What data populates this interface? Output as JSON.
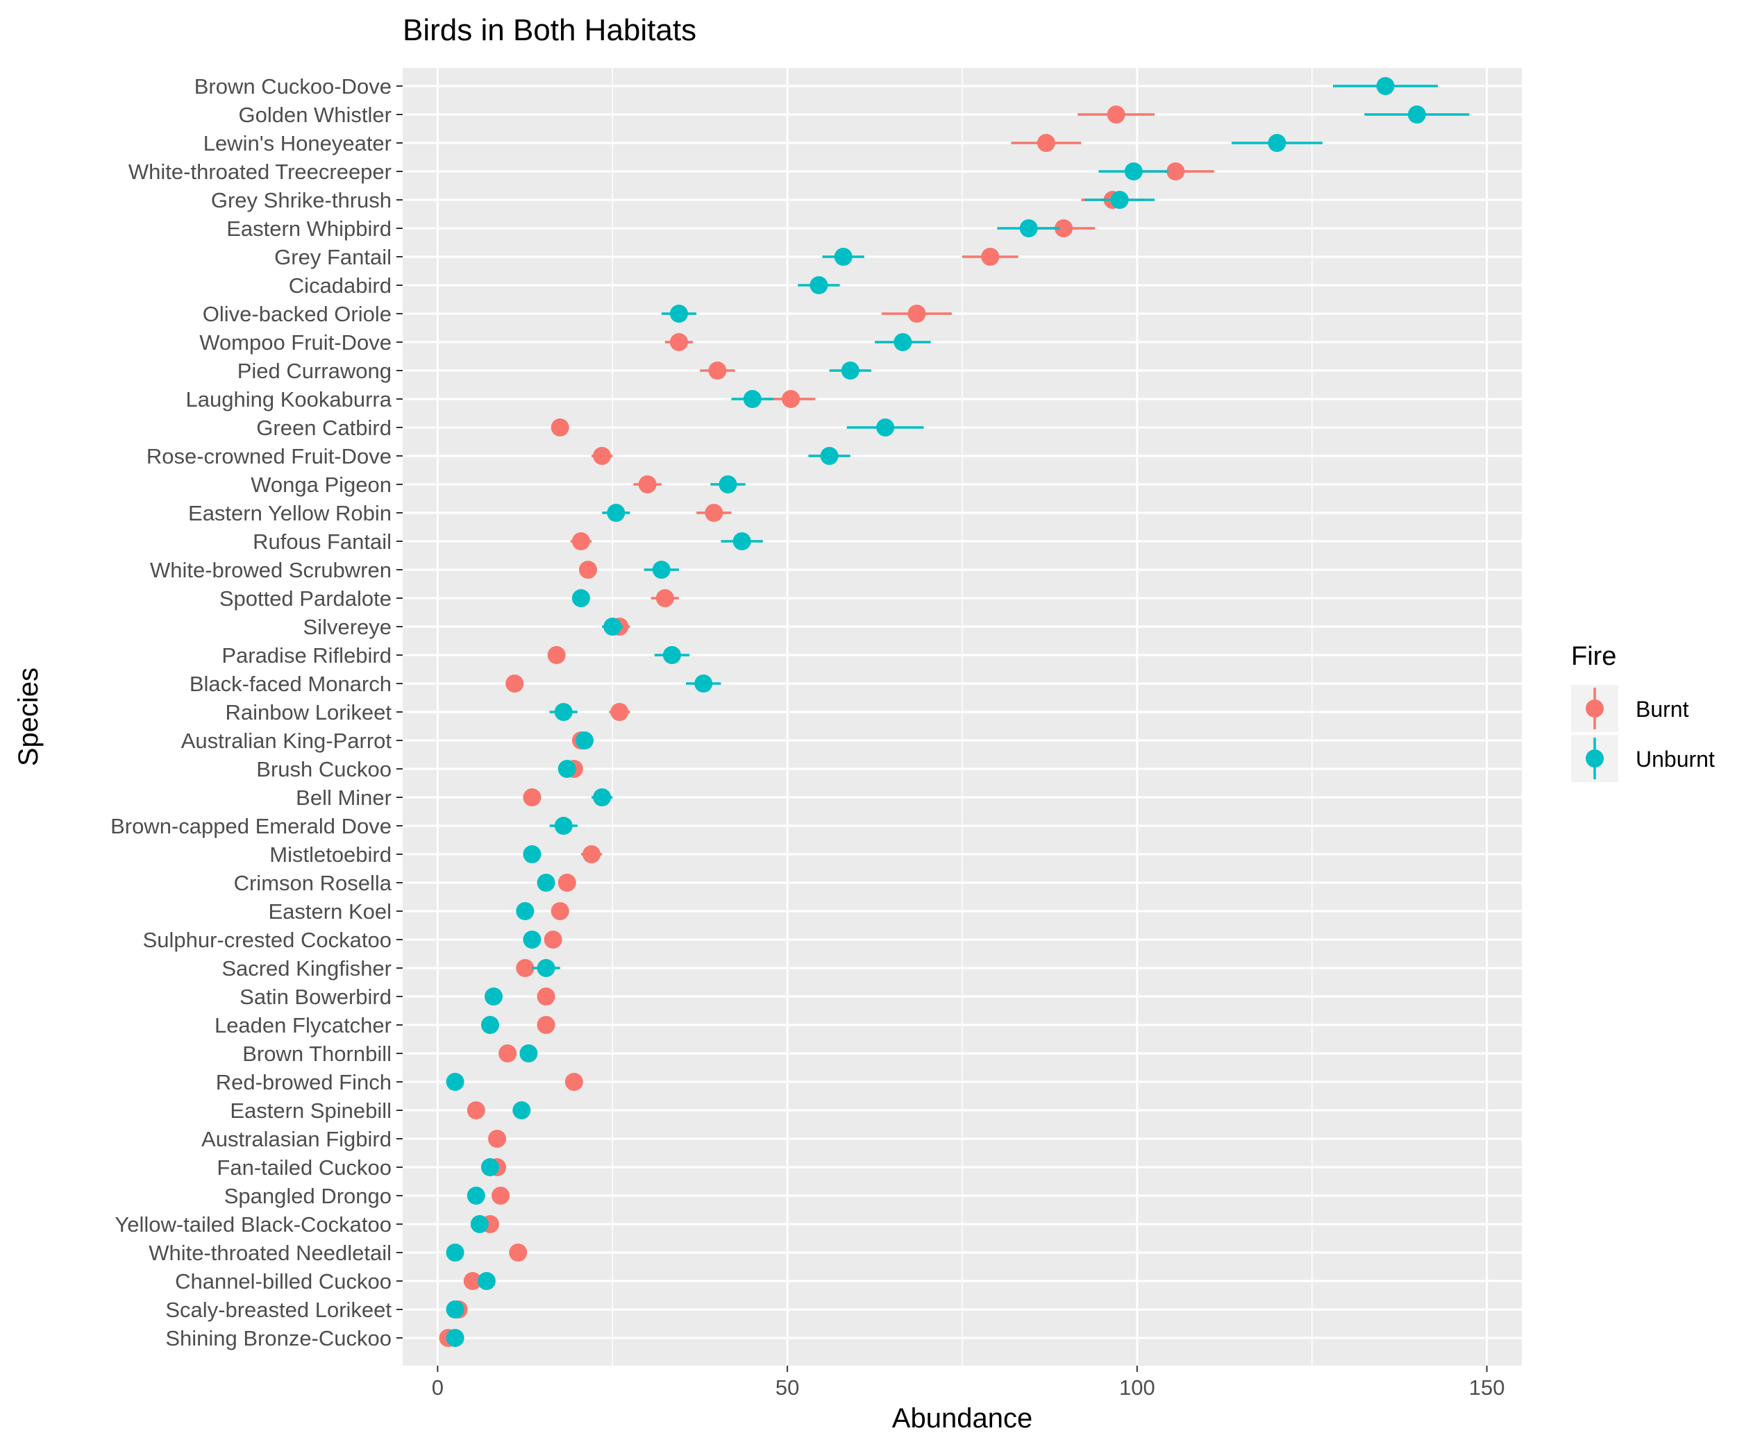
{
  "chart_data": {
    "type": "scatter",
    "title": "Birds in Both Habitats",
    "xlabel": "Abundance",
    "ylabel": "Species",
    "xlim": [
      -5,
      155
    ],
    "xticks": [
      0,
      50,
      100,
      150
    ],
    "grid": true,
    "legend": {
      "title": "Fire",
      "position": "right",
      "entries": [
        {
          "name": "Burnt",
          "color": "#F8766D"
        },
        {
          "name": "Unburnt",
          "color": "#00BFC4"
        }
      ]
    },
    "categories": [
      "Brown Cuckoo-Dove",
      "Golden Whistler",
      "Lewin's Honeyeater",
      "White-throated Treecreeper",
      "Grey Shrike-thrush",
      "Eastern Whipbird",
      "Grey Fantail",
      "Cicadabird",
      "Olive-backed Oriole",
      "Wompoo Fruit-Dove",
      "Pied Currawong",
      "Laughing Kookaburra",
      "Green Catbird",
      "Rose-crowned Fruit-Dove",
      "Wonga Pigeon",
      "Eastern Yellow Robin",
      "Rufous Fantail",
      "White-browed Scrubwren",
      "Spotted Pardalote",
      "Silvereye",
      "Paradise Riflebird",
      "Black-faced Monarch",
      "Rainbow Lorikeet",
      "Australian King-Parrot",
      "Brush Cuckoo",
      "Bell Miner",
      "Brown-capped Emerald Dove",
      "Mistletoebird",
      "Crimson Rosella",
      "Eastern Koel",
      "Sulphur-crested Cockatoo",
      "Sacred Kingfisher",
      "Satin Bowerbird",
      "Leaden Flycatcher",
      "Brown Thornbill",
      "Red-browed Finch",
      "Eastern Spinebill",
      "Australasian Figbird",
      "Fan-tailed Cuckoo",
      "Spangled Drongo",
      "Yellow-tailed Black-Cockatoo",
      "White-throated Needletail",
      "Channel-billed Cuckoo",
      "Scaly-breasted Lorikeet",
      "Shining Bronze-Cuckoo"
    ],
    "series": [
      {
        "name": "Burnt",
        "color": "#F8766D",
        "values": [
          null,
          97,
          87,
          105.5,
          96.5,
          89.5,
          79,
          null,
          68.5,
          34.5,
          40,
          50.5,
          17.5,
          23.5,
          30,
          39.5,
          20.5,
          21.5,
          32.5,
          26,
          17,
          11,
          26,
          20.5,
          19.5,
          13.5,
          null,
          22,
          18.5,
          17.5,
          16.5,
          12.5,
          15.5,
          15.5,
          10,
          19.5,
          5.5,
          8.5,
          8.5,
          9,
          7.5,
          11.5,
          5,
          3,
          1.5
        ],
        "err": [
          null,
          5.5,
          5,
          5.5,
          4.5,
          4.5,
          4,
          null,
          5,
          2,
          2.5,
          3.5,
          1,
          1.5,
          2,
          2.5,
          1.5,
          1,
          2,
          1.5,
          1,
          0.8,
          1.5,
          1,
          1,
          0.8,
          null,
          1.5,
          1,
          0.8,
          1,
          0.8,
          0.6,
          0.6,
          0.6,
          0.6,
          0.6,
          0.5,
          0.5,
          0.5,
          0.5,
          0.6,
          0.5,
          0.5,
          0.3
        ]
      },
      {
        "name": "Unburnt",
        "color": "#00BFC4",
        "values": [
          135.5,
          140,
          120,
          99.5,
          97.5,
          84.5,
          58,
          54.5,
          34.5,
          66.5,
          59,
          45,
          64,
          56,
          41.5,
          25.5,
          43.5,
          32,
          20.5,
          25,
          33.5,
          38,
          18,
          21,
          18.5,
          23.5,
          18,
          13.5,
          15.5,
          12.5,
          13.5,
          15.5,
          8,
          7.5,
          13,
          2.5,
          12,
          null,
          7.5,
          5.5,
          6,
          2.5,
          7,
          2.5,
          2.5
        ],
        "err": [
          7.5,
          7.5,
          6.5,
          5,
          5,
          4.5,
          3,
          3,
          2.5,
          4,
          3,
          3,
          5.5,
          3,
          2.5,
          2,
          3,
          2.5,
          1,
          1.5,
          2.5,
          2.5,
          2,
          1,
          1,
          1.5,
          2,
          1,
          1,
          1,
          1,
          2,
          0.6,
          0.6,
          0.6,
          0.4,
          0.7,
          null,
          0.8,
          0.6,
          0.6,
          0.4,
          0.6,
          0.4,
          0.4
        ]
      }
    ]
  }
}
